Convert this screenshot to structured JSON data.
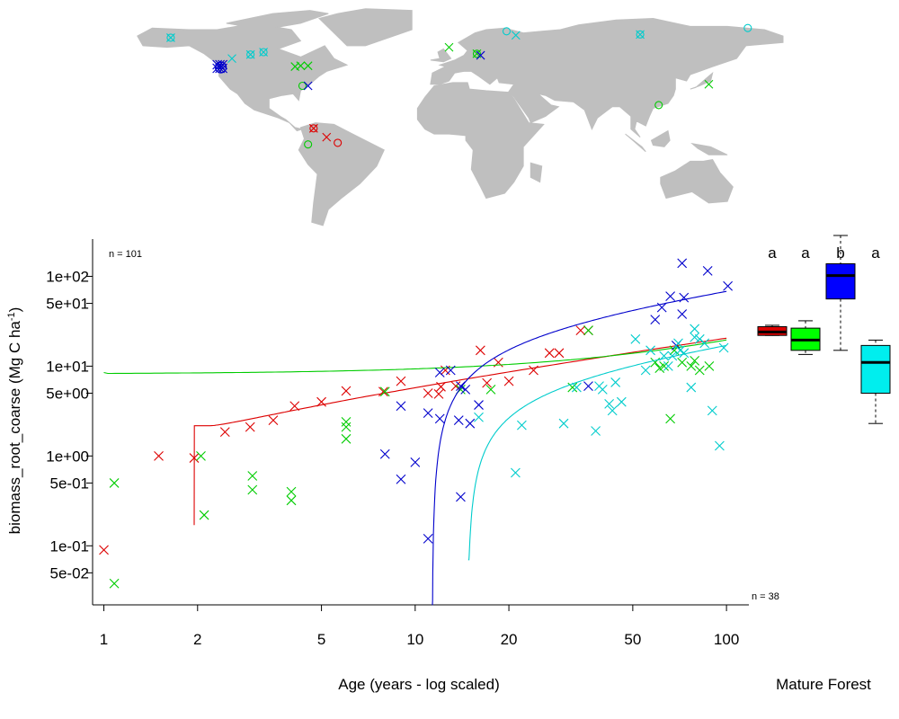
{
  "chart_data": {
    "type": "scatter",
    "log_x": true,
    "log_y": true,
    "xlabel": "Age (years - log scaled)",
    "ylabel": "biomass_root_coarse (Mg C ha",
    "ylabel_sup": "-1",
    "ylabel_close": ")",
    "xlim": [
      0.92,
      118
    ],
    "ylim": [
      0.022,
      260
    ],
    "x_ticks": [
      1,
      2,
      5,
      10,
      20,
      50,
      100
    ],
    "x_tick_labels": [
      "1",
      "2",
      "5",
      "10",
      "20",
      "50",
      "100"
    ],
    "y_ticks": [
      0.05,
      0.1,
      0.5,
      1,
      5,
      10,
      50,
      100
    ],
    "y_tick_labels": [
      "5e-02",
      "1e-01",
      "5e-01",
      "1e+00",
      "5e+00",
      "1e+01",
      "5e+01",
      "1e+02"
    ],
    "n_top": "n = 101",
    "n_bottom": "n = 38",
    "mature_label": "Mature Forest",
    "colors": {
      "red": "#dd0000",
      "green": "#00cc00",
      "blue": "#0000cc",
      "cyan": "#00cccc"
    },
    "series": [
      {
        "color": "#dd0000",
        "points": [
          [
            1,
            0.09
          ],
          [
            1.5,
            1.0
          ],
          [
            1.95,
            0.95
          ],
          [
            2.45,
            1.85
          ],
          [
            2.95,
            2.1
          ],
          [
            3.5,
            2.5
          ],
          [
            4.1,
            3.6
          ],
          [
            5,
            4
          ],
          [
            6,
            5.3
          ],
          [
            7.9,
            5.2
          ],
          [
            9,
            6.8
          ],
          [
            11,
            5
          ],
          [
            11.9,
            4.9
          ],
          [
            12.1,
            5.9
          ],
          [
            12.5,
            9
          ],
          [
            13.5,
            6
          ],
          [
            16.2,
            15
          ],
          [
            17,
            6.5
          ],
          [
            18.5,
            11
          ],
          [
            20,
            6.8
          ],
          [
            24,
            9
          ],
          [
            27,
            14
          ],
          [
            29,
            14
          ],
          [
            34,
            25
          ],
          [
            36,
            25
          ]
        ],
        "curve": {
          "x0": 1.95,
          "x1": 100,
          "a": 1.4,
          "b": 4.5,
          "c": 2.2,
          "floor": 1.85
        }
      },
      {
        "color": "#00cc00",
        "points": [
          [
            1.08,
            0.5
          ],
          [
            1.08,
            0.038
          ],
          [
            2.05,
            1.0
          ],
          [
            2.1,
            0.22
          ],
          [
            3,
            0.6
          ],
          [
            3,
            0.42
          ],
          [
            4,
            0.4
          ],
          [
            4,
            0.32
          ],
          [
            6,
            2.4
          ],
          [
            6,
            2.1
          ],
          [
            6,
            1.55
          ],
          [
            8,
            5.2
          ],
          [
            14,
            5.5
          ],
          [
            17.5,
            5.5
          ],
          [
            32,
            5.8
          ],
          [
            36,
            25
          ],
          [
            59,
            11
          ],
          [
            61,
            9.5
          ],
          [
            63,
            10
          ],
          [
            66,
            2.6
          ],
          [
            68,
            15
          ],
          [
            72,
            11
          ],
          [
            77,
            10
          ],
          [
            79,
            11.5
          ],
          [
            82,
            9
          ],
          [
            88,
            10
          ]
        ],
        "curve": {
          "x0": 1,
          "x1": 100,
          "lin": [
            8.3,
            0.19
          ]
        }
      },
      {
        "color": "#0000cc",
        "points": [
          [
            8,
            1.05
          ],
          [
            9,
            3.6
          ],
          [
            9,
            0.55
          ],
          [
            10,
            0.85
          ],
          [
            11,
            0.12
          ],
          [
            11,
            3
          ],
          [
            12,
            2.6
          ],
          [
            12,
            8.5
          ],
          [
            13,
            9
          ],
          [
            13.8,
            2.5
          ],
          [
            14,
            6
          ],
          [
            14,
            0.35
          ],
          [
            14.5,
            5.5
          ],
          [
            15,
            2.3
          ],
          [
            16,
            3.7
          ],
          [
            36,
            6
          ],
          [
            59,
            33
          ],
          [
            62,
            45
          ],
          [
            66,
            60
          ],
          [
            69,
            17
          ],
          [
            72,
            140
          ],
          [
            72,
            38
          ],
          [
            73,
            58
          ],
          [
            87,
            115
          ],
          [
            101,
            78
          ]
        ],
        "curve": {
          "x0": 11.35,
          "x1": 100,
          "a": 5.2,
          "b": 18,
          "c": 11.35,
          "floor": 0.02
        }
      },
      {
        "color": "#00cccc",
        "points": [
          [
            16,
            2.7
          ],
          [
            21,
            0.65
          ],
          [
            22,
            2.2
          ],
          [
            30,
            2.3
          ],
          [
            33,
            5.8
          ],
          [
            38,
            1.9
          ],
          [
            39,
            6
          ],
          [
            40,
            5.5
          ],
          [
            42,
            3.8
          ],
          [
            43,
            3.2
          ],
          [
            44,
            6.6
          ],
          [
            46,
            4
          ],
          [
            51,
            20
          ],
          [
            55,
            9
          ],
          [
            57,
            15
          ],
          [
            63,
            13
          ],
          [
            65,
            10
          ],
          [
            67,
            13
          ],
          [
            70,
            18
          ],
          [
            71,
            15
          ],
          [
            73,
            14
          ],
          [
            77,
            5.8
          ],
          [
            79,
            21
          ],
          [
            79,
            26
          ],
          [
            82,
            20
          ],
          [
            85,
            18
          ],
          [
            90,
            3.2
          ],
          [
            95,
            1.3
          ],
          [
            98,
            16
          ]
        ],
        "curve": {
          "x0": 14.8,
          "x1": 100,
          "a": 1.8,
          "b": 7.5,
          "c": 14.8,
          "floor": 0.07
        }
      }
    ],
    "boxplots": [
      {
        "color": "#dd0000",
        "letter": "a",
        "min": 22,
        "q1": 22,
        "median": 24,
        "q3": 27.5,
        "max": 28.5
      },
      {
        "color": "#00ff00",
        "letter": "a",
        "min": 13.5,
        "q1": 15,
        "median": 19.5,
        "q3": 26.5,
        "max": 32
      },
      {
        "color": "#0000ff",
        "letter": "b",
        "min": 15,
        "q1": 56,
        "median": 102,
        "q3": 138,
        "max": 285
      },
      {
        "color": "#00eeee",
        "letter": "a",
        "min": 2.3,
        "q1": 5,
        "median": 11,
        "q3": 17,
        "max": 19.5
      }
    ]
  },
  "map": {
    "land_color": "#bfbfbf",
    "sites": [
      {
        "lon": -150,
        "lat": 65,
        "marker": "ox",
        "color": "#00cccc"
      },
      {
        "lon": -123,
        "lat": 46.5,
        "marker": "cluster",
        "color": "#0000cc"
      },
      {
        "lon": -117,
        "lat": 52,
        "marker": "x",
        "color": "#00cccc"
      },
      {
        "lon": -107,
        "lat": 54.5,
        "marker": "ox",
        "color": "#00cccc"
      },
      {
        "lon": -100,
        "lat": 56,
        "marker": "ox",
        "color": "#00cccc"
      },
      {
        "lon": -83,
        "lat": 47,
        "marker": "x",
        "color": "#00cc00"
      },
      {
        "lon": -80,
        "lat": 47.5,
        "marker": "x",
        "color": "#00cc00"
      },
      {
        "lon": -76,
        "lat": 47.5,
        "marker": "x",
        "color": "#00cc00"
      },
      {
        "lon": -79,
        "lat": 35,
        "marker": "o",
        "color": "#00cc00"
      },
      {
        "lon": -76,
        "lat": 35,
        "marker": "x",
        "color": "#0000cc"
      },
      {
        "lon": -73,
        "lat": 8.5,
        "marker": "ox",
        "color": "#dd0000"
      },
      {
        "lon": -66,
        "lat": 3,
        "marker": "x",
        "color": "#dd0000"
      },
      {
        "lon": -76,
        "lat": -1.5,
        "marker": "o",
        "color": "#00cc00"
      },
      {
        "lon": -60,
        "lat": -0.5,
        "marker": "o",
        "color": "#dd0000"
      },
      {
        "lon": 0,
        "lat": 59,
        "marker": "x",
        "color": "#00cc00"
      },
      {
        "lon": 15,
        "lat": 55,
        "marker": "ox",
        "color": "#00cc00"
      },
      {
        "lon": 17,
        "lat": 54,
        "marker": "x",
        "color": "#0000cc"
      },
      {
        "lon": 31,
        "lat": 69,
        "marker": "o",
        "color": "#00cccc"
      },
      {
        "lon": 36,
        "lat": 66.5,
        "marker": "x",
        "color": "#00cccc"
      },
      {
        "lon": 103,
        "lat": 67,
        "marker": "ox",
        "color": "#00cccc"
      },
      {
        "lon": 113,
        "lat": 23,
        "marker": "o",
        "color": "#00cc00"
      },
      {
        "lon": 140,
        "lat": 36,
        "marker": "x",
        "color": "#00cc00"
      },
      {
        "lon": 161,
        "lat": 71,
        "marker": "o",
        "color": "#00cccc"
      }
    ]
  }
}
